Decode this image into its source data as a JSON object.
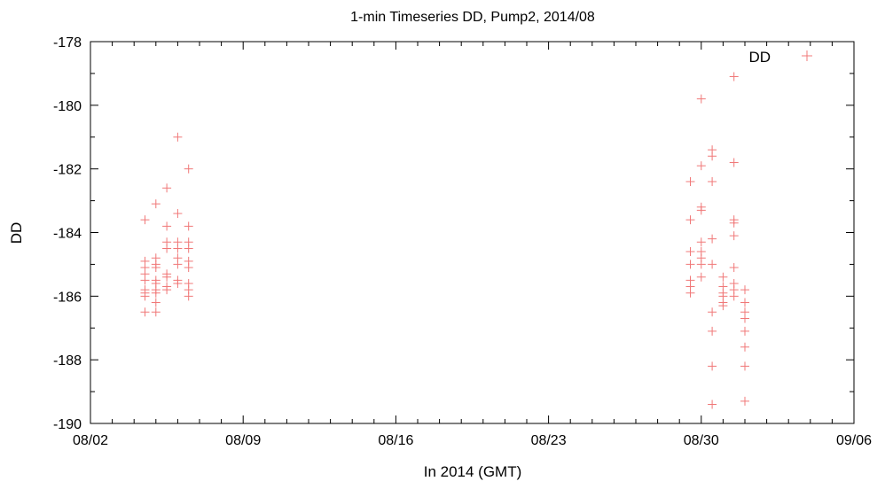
{
  "chart_data": {
    "type": "scatter",
    "title": "1-min Timeseries DD, Pump2, 2014/08",
    "xlabel": "In 2014 (GMT)",
    "ylabel": "DD",
    "xlim": [
      "2014-08-02",
      "2014-09-06"
    ],
    "ylim": [
      -190,
      -178
    ],
    "x_ticks": [
      "08/02",
      "08/09",
      "08/16",
      "08/23",
      "08/30",
      "09/06"
    ],
    "y_ticks": [
      "-178",
      "-180",
      "-182",
      "-184",
      "-186",
      "-188",
      "-190"
    ],
    "x_minor_interval_days": 1,
    "y_minor_interval": 1,
    "grid": false,
    "legend": "top-right",
    "series": [
      {
        "name": "DD",
        "color": "#f07878",
        "marker": "plus",
        "points": [
          [
            "2014-08-04 12:00",
            -183.6
          ],
          [
            "2014-08-04 12:00",
            -184.9
          ],
          [
            "2014-08-04 12:00",
            -185.1
          ],
          [
            "2014-08-04 12:00",
            -185.3
          ],
          [
            "2014-08-04 12:00",
            -185.5
          ],
          [
            "2014-08-04 12:00",
            -185.8
          ],
          [
            "2014-08-04 12:00",
            -185.9
          ],
          [
            "2014-08-04 12:00",
            -186.0
          ],
          [
            "2014-08-04 12:00",
            -186.5
          ],
          [
            "2014-08-05 00:00",
            -183.1
          ],
          [
            "2014-08-05 00:00",
            -184.8
          ],
          [
            "2014-08-05 00:00",
            -185.0
          ],
          [
            "2014-08-05 00:00",
            -185.1
          ],
          [
            "2014-08-05 00:00",
            -185.5
          ],
          [
            "2014-08-05 00:00",
            -185.6
          ],
          [
            "2014-08-05 00:00",
            -185.8
          ],
          [
            "2014-08-05 00:00",
            -185.9
          ],
          [
            "2014-08-05 00:00",
            -186.2
          ],
          [
            "2014-08-05 00:00",
            -186.5
          ],
          [
            "2014-08-05 12:00",
            -182.6
          ],
          [
            "2014-08-05 12:00",
            -183.8
          ],
          [
            "2014-08-05 12:00",
            -184.3
          ],
          [
            "2014-08-05 12:00",
            -184.5
          ],
          [
            "2014-08-05 12:00",
            -185.3
          ],
          [
            "2014-08-05 12:00",
            -185.4
          ],
          [
            "2014-08-05 12:00",
            -185.7
          ],
          [
            "2014-08-05 12:00",
            -185.8
          ],
          [
            "2014-08-06 00:00",
            -181.0
          ],
          [
            "2014-08-06 00:00",
            -183.4
          ],
          [
            "2014-08-06 00:00",
            -184.3
          ],
          [
            "2014-08-06 00:00",
            -184.5
          ],
          [
            "2014-08-06 00:00",
            -184.8
          ],
          [
            "2014-08-06 00:00",
            -185.0
          ],
          [
            "2014-08-06 00:00",
            -185.5
          ],
          [
            "2014-08-06 00:00",
            -185.6
          ],
          [
            "2014-08-06 12:00",
            -182.0
          ],
          [
            "2014-08-06 12:00",
            -183.8
          ],
          [
            "2014-08-06 12:00",
            -184.3
          ],
          [
            "2014-08-06 12:00",
            -184.5
          ],
          [
            "2014-08-06 12:00",
            -184.9
          ],
          [
            "2014-08-06 12:00",
            -185.1
          ],
          [
            "2014-08-06 12:00",
            -185.6
          ],
          [
            "2014-08-06 12:00",
            -185.8
          ],
          [
            "2014-08-06 12:00",
            -186.0
          ],
          [
            "2014-08-29 12:00",
            -182.4
          ],
          [
            "2014-08-29 12:00",
            -183.6
          ],
          [
            "2014-08-29 12:00",
            -184.6
          ],
          [
            "2014-08-29 12:00",
            -185.0
          ],
          [
            "2014-08-29 12:00",
            -185.5
          ],
          [
            "2014-08-29 12:00",
            -185.7
          ],
          [
            "2014-08-29 12:00",
            -185.9
          ],
          [
            "2014-08-30 00:00",
            -179.8
          ],
          [
            "2014-08-30 00:00",
            -181.9
          ],
          [
            "2014-08-30 00:00",
            -183.2
          ],
          [
            "2014-08-30 00:00",
            -183.3
          ],
          [
            "2014-08-30 00:00",
            -184.3
          ],
          [
            "2014-08-30 00:00",
            -184.6
          ],
          [
            "2014-08-30 00:00",
            -184.8
          ],
          [
            "2014-08-30 00:00",
            -185.0
          ],
          [
            "2014-08-30 00:00",
            -185.4
          ],
          [
            "2014-08-30 12:00",
            -181.4
          ],
          [
            "2014-08-30 12:00",
            -181.6
          ],
          [
            "2014-08-30 12:00",
            -182.4
          ],
          [
            "2014-08-30 12:00",
            -184.2
          ],
          [
            "2014-08-30 12:00",
            -185.0
          ],
          [
            "2014-08-30 12:00",
            -186.5
          ],
          [
            "2014-08-30 12:00",
            -187.1
          ],
          [
            "2014-08-30 12:00",
            -188.2
          ],
          [
            "2014-08-30 12:00",
            -189.4
          ],
          [
            "2014-08-31 00:00",
            -185.4
          ],
          [
            "2014-08-31 00:00",
            -185.7
          ],
          [
            "2014-08-31 00:00",
            -185.9
          ],
          [
            "2014-08-31 00:00",
            -186.0
          ],
          [
            "2014-08-31 00:00",
            -186.2
          ],
          [
            "2014-08-31 00:00",
            -186.3
          ],
          [
            "2014-08-31 12:00",
            -179.1
          ],
          [
            "2014-08-31 12:00",
            -181.8
          ],
          [
            "2014-08-31 12:00",
            -183.6
          ],
          [
            "2014-08-31 12:00",
            -183.7
          ],
          [
            "2014-08-31 12:00",
            -184.1
          ],
          [
            "2014-08-31 12:00",
            -185.1
          ],
          [
            "2014-08-31 12:00",
            -185.6
          ],
          [
            "2014-08-31 12:00",
            -185.8
          ],
          [
            "2014-08-31 12:00",
            -186.0
          ],
          [
            "2014-09-01 00:00",
            -185.8
          ],
          [
            "2014-09-01 00:00",
            -186.2
          ],
          [
            "2014-09-01 00:00",
            -186.5
          ],
          [
            "2014-09-01 00:00",
            -186.7
          ],
          [
            "2014-09-01 00:00",
            -187.1
          ],
          [
            "2014-09-01 00:00",
            -187.6
          ],
          [
            "2014-09-01 00:00",
            -188.2
          ],
          [
            "2014-09-01 00:00",
            -189.3
          ]
        ]
      }
    ]
  }
}
